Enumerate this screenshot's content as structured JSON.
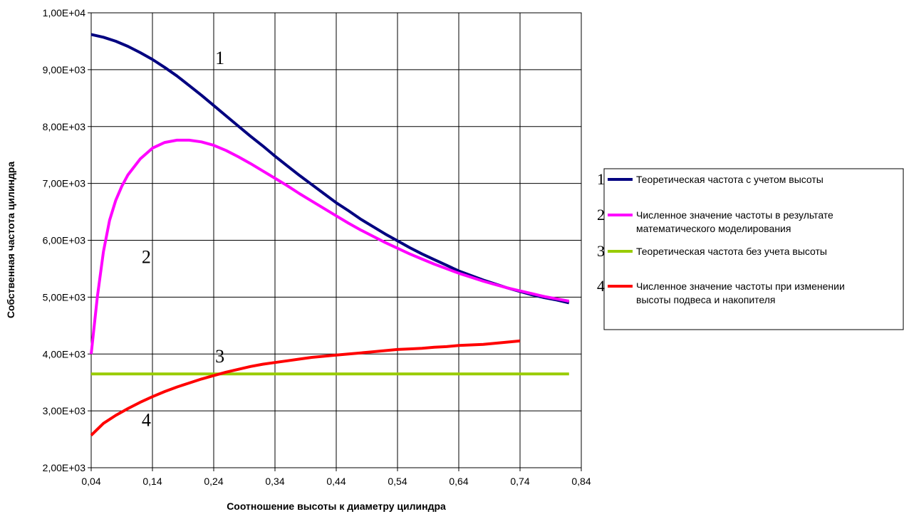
{
  "chart_data": {
    "type": "line",
    "title": "",
    "xlabel": "Соотношение высоты к диаметру цилиндра",
    "ylabel": "Собственная частота цилиндра",
    "xlim": [
      0.04,
      0.84
    ],
    "ylim": [
      2000,
      10000
    ],
    "x_ticks": [
      "0,04",
      "0,14",
      "0,24",
      "0,34",
      "0,44",
      "0,54",
      "0,64",
      "0,74",
      "0,84"
    ],
    "y_ticks": [
      "2,00E+03",
      "3,00E+03",
      "4,00E+03",
      "5,00E+03",
      "6,00E+03",
      "7,00E+03",
      "8,00E+03",
      "9,00E+03",
      "1,00E+04"
    ],
    "grid": true,
    "legend_position": "right",
    "series": [
      {
        "id": "1",
        "name": "Теоретическая частота с учетом высоты",
        "color": "#000080",
        "x": [
          0.04,
          0.06,
          0.08,
          0.1,
          0.12,
          0.14,
          0.16,
          0.18,
          0.2,
          0.22,
          0.24,
          0.26,
          0.28,
          0.3,
          0.32,
          0.34,
          0.36,
          0.38,
          0.4,
          0.42,
          0.44,
          0.46,
          0.48,
          0.5,
          0.52,
          0.54,
          0.56,
          0.58,
          0.6,
          0.62,
          0.64,
          0.66,
          0.68,
          0.7,
          0.72,
          0.74,
          0.76,
          0.78,
          0.8,
          0.82
        ],
        "values": [
          9620,
          9570,
          9500,
          9410,
          9300,
          9180,
          9040,
          8890,
          8720,
          8550,
          8370,
          8190,
          8010,
          7830,
          7660,
          7480,
          7310,
          7140,
          6980,
          6820,
          6660,
          6520,
          6370,
          6240,
          6110,
          5990,
          5870,
          5760,
          5660,
          5560,
          5460,
          5380,
          5300,
          5230,
          5160,
          5100,
          5040,
          4990,
          4950,
          4900
        ]
      },
      {
        "id": "2",
        "name": "Численное значение частоты в результате математического моделирования",
        "color": "#ff00ff",
        "x": [
          0.04,
          0.05,
          0.06,
          0.07,
          0.08,
          0.09,
          0.1,
          0.12,
          0.14,
          0.16,
          0.18,
          0.2,
          0.22,
          0.24,
          0.26,
          0.28,
          0.3,
          0.32,
          0.34,
          0.36,
          0.38,
          0.4,
          0.42,
          0.44,
          0.46,
          0.48,
          0.5,
          0.52,
          0.54,
          0.56,
          0.58,
          0.6,
          0.62,
          0.64,
          0.66,
          0.68,
          0.7,
          0.72,
          0.74,
          0.76,
          0.78,
          0.8,
          0.82
        ],
        "values": [
          4000,
          5000,
          5800,
          6350,
          6700,
          6950,
          7150,
          7430,
          7620,
          7720,
          7760,
          7760,
          7730,
          7670,
          7580,
          7470,
          7350,
          7220,
          7090,
          6960,
          6820,
          6690,
          6560,
          6430,
          6300,
          6180,
          6070,
          5960,
          5860,
          5760,
          5670,
          5580,
          5500,
          5420,
          5350,
          5280,
          5220,
          5160,
          5110,
          5060,
          5010,
          4970,
          4930
        ]
      },
      {
        "id": "3",
        "name": "Теоретическая частота без учета высоты",
        "color": "#99cc00",
        "x": [
          0.04,
          0.82
        ],
        "values": [
          3650,
          3650
        ]
      },
      {
        "id": "4",
        "name": "Численное значение частоты при изменении высоты подвеса и накопителя",
        "color": "#ff0000",
        "x": [
          0.04,
          0.06,
          0.08,
          0.1,
          0.12,
          0.14,
          0.16,
          0.18,
          0.2,
          0.22,
          0.24,
          0.26,
          0.28,
          0.3,
          0.32,
          0.34,
          0.36,
          0.38,
          0.4,
          0.42,
          0.44,
          0.46,
          0.48,
          0.5,
          0.52,
          0.54,
          0.56,
          0.58,
          0.6,
          0.62,
          0.64,
          0.66,
          0.68,
          0.7,
          0.72,
          0.74
        ],
        "values": [
          2570,
          2780,
          2920,
          3040,
          3150,
          3250,
          3340,
          3420,
          3490,
          3560,
          3620,
          3680,
          3730,
          3780,
          3820,
          3850,
          3880,
          3910,
          3940,
          3960,
          3980,
          4000,
          4020,
          4040,
          4060,
          4080,
          4090,
          4100,
          4120,
          4130,
          4150,
          4160,
          4170,
          4190,
          4210,
          4230
        ]
      }
    ],
    "curve_labels": [
      {
        "text": "1",
        "x": 0.25,
        "y": 9100
      },
      {
        "text": "2",
        "x": 0.13,
        "y": 5600
      },
      {
        "text": "3",
        "x": 0.25,
        "y": 3850
      },
      {
        "text": "4",
        "x": 0.13,
        "y": 2730
      }
    ]
  }
}
